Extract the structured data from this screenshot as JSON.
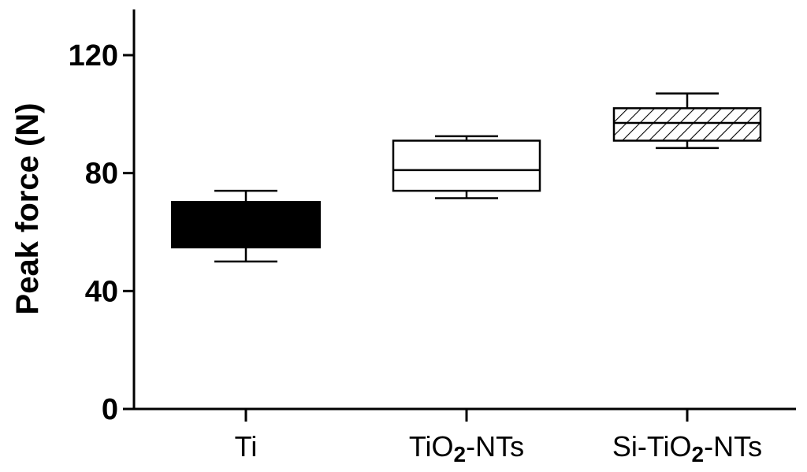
{
  "chart_data": {
    "type": "box",
    "title": "",
    "xlabel": "",
    "ylabel": "Peak force  (N)",
    "ylim": [
      0,
      135
    ],
    "yticks": [
      0,
      40,
      80,
      120
    ],
    "grid": false,
    "legend": "none",
    "categories": [
      {
        "pre": "Ti",
        "sub": "",
        "post": ""
      },
      {
        "pre": "TiO",
        "sub": "2",
        "post": "-NTs"
      },
      {
        "pre": "Si-TiO",
        "sub": "2",
        "post": "-NTs"
      }
    ],
    "boxes": [
      {
        "category": "Ti",
        "whisker_low": 50,
        "q1": 55,
        "median": 62,
        "q3": 70,
        "whisker_high": 74,
        "fill": "solid"
      },
      {
        "category": "TiO2-NTs",
        "whisker_low": 71.5,
        "q1": 74,
        "median": 81,
        "q3": 91,
        "whisker_high": 92.5,
        "fill": "none"
      },
      {
        "category": "Si-TiO2-NTs",
        "whisker_low": 88.5,
        "q1": 91,
        "median": 97,
        "q3": 102,
        "whisker_high": 107,
        "fill": "hatched"
      }
    ]
  },
  "colors": {
    "axis": "#000000",
    "box_stroke": "#000000",
    "solid_fill": "#000000"
  }
}
